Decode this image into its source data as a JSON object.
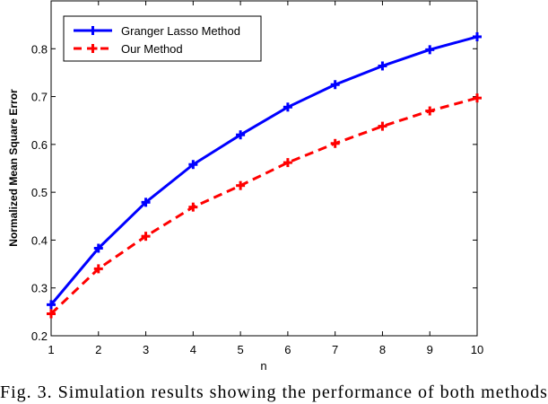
{
  "chart_data": {
    "type": "line",
    "title": "",
    "xlabel": "n",
    "ylabel": "Normalized Mean Square Error",
    "x": [
      1,
      2,
      3,
      4,
      5,
      6,
      7,
      8,
      9,
      10
    ],
    "xlim": [
      1,
      10
    ],
    "ylim": [
      0.2,
      0.9
    ],
    "xticks": [
      "1",
      "2",
      "3",
      "4",
      "5",
      "6",
      "7",
      "8",
      "9",
      "10"
    ],
    "yticks": [
      "0.2",
      "0.3",
      "0.4",
      "0.5",
      "0.6",
      "0.7",
      "0.8"
    ],
    "grid": false,
    "legend_position": "top-left",
    "series": [
      {
        "name": "Granger Lasso Method",
        "color": "#0000ff",
        "line_style": "solid",
        "marker": "plus",
        "values": [
          0.265,
          0.383,
          0.479,
          0.558,
          0.62,
          0.678,
          0.725,
          0.764,
          0.798,
          0.825
        ]
      },
      {
        "name": "Our Method",
        "color": "#ff0000",
        "line_style": "dashed",
        "marker": "plus",
        "values": [
          0.246,
          0.34,
          0.408,
          0.469,
          0.514,
          0.562,
          0.602,
          0.638,
          0.67,
          0.697
        ]
      }
    ]
  },
  "caption": "Fig. 3.   Simulation results showing the performance of both methods"
}
